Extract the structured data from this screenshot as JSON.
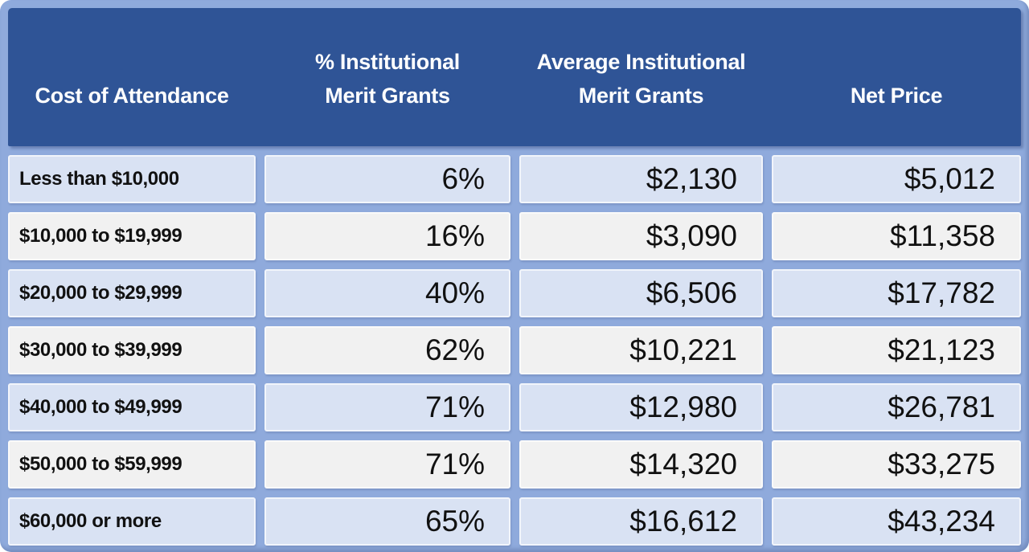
{
  "colors": {
    "header_background": "#2F5496",
    "header_text": "#FFFFFF",
    "frame_background": "#8FAADC",
    "row_alt_blue": "#D9E2F3",
    "row_alt_gray": "#F1F1F1",
    "body_text": "#111111"
  },
  "header_display": {
    "col0": "Cost of Attendance",
    "col1": "% Institutional\nMerit Grants",
    "col2": "Average Institutional\nMerit Grants",
    "col3": "Net Price"
  },
  "chart_data": {
    "type": "table",
    "title": "",
    "columns": [
      "Cost of Attendance",
      "% Institutional Merit Grants",
      "Average Institutional Merit Grants",
      "Net Price"
    ],
    "rows": [
      [
        "Less than $10,000",
        "6%",
        "$2,130",
        "$5,012"
      ],
      [
        "$10,000 to $19,999",
        "16%",
        "$3,090",
        "$11,358"
      ],
      [
        "$20,000 to $29,999",
        "40%",
        "$6,506",
        "$17,782"
      ],
      [
        "$30,000 to $39,999",
        "62%",
        "$10,221",
        "$21,123"
      ],
      [
        "$40,000 to $49,999",
        "71%",
        "$12,980",
        "$26,781"
      ],
      [
        "$50,000 to $59,999",
        "71%",
        "$14,320",
        "$33,275"
      ],
      [
        "$60,000 or more",
        "65%",
        "$16,612",
        "$43,234"
      ]
    ],
    "percent_values": [
      6,
      16,
      40,
      62,
      71,
      71,
      65
    ],
    "average_grant_values": [
      2130,
      3090,
      6506,
      10221,
      12980,
      14320,
      16612
    ],
    "net_price_values": [
      5012,
      11358,
      17782,
      21123,
      26781,
      33275,
      43234
    ]
  }
}
